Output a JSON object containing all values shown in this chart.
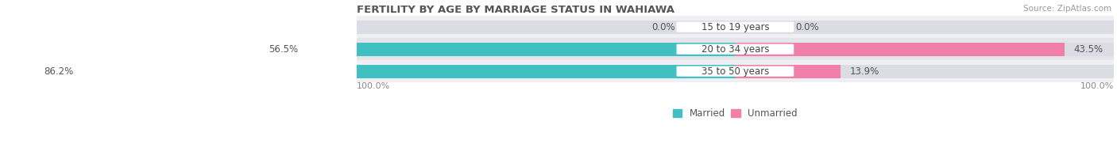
{
  "title": "FERTILITY BY AGE BY MARRIAGE STATUS IN WAHIAWA",
  "source": "Source: ZipAtlas.com",
  "rows": [
    {
      "label": "15 to 19 years",
      "married": 0.0,
      "unmarried": 0.0
    },
    {
      "label": "20 to 34 years",
      "married": 56.5,
      "unmarried": 43.5
    },
    {
      "label": "35 to 50 years",
      "married": 86.2,
      "unmarried": 13.9
    }
  ],
  "married_color": "#40c0c0",
  "unmarried_color": "#f080a8",
  "bar_bg_color_odd": "#e8e8ec",
  "bar_bg_color_even": "#d8d8e0",
  "row_bg_light": "#f0f0f4",
  "row_bg_dark": "#e4e4ea",
  "bar_height": 0.6,
  "label_fontsize": 8.5,
  "title_fontsize": 9.5,
  "source_fontsize": 7.5,
  "legend_fontsize": 8.5,
  "value_fontsize": 8.5,
  "tick_fontsize": 8.0
}
